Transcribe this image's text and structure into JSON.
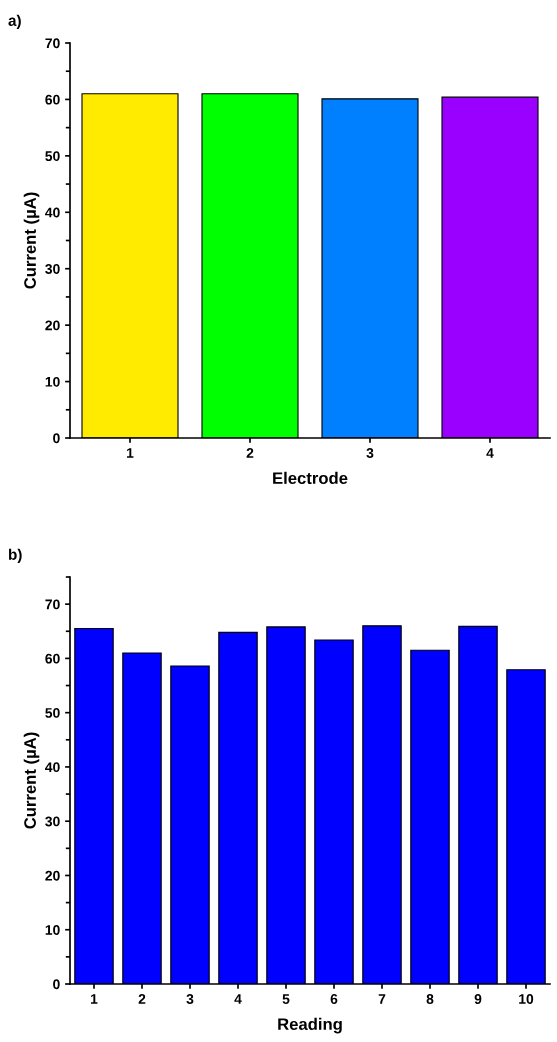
{
  "chart_data": [
    {
      "type": "bar",
      "xlabel": "Electrode",
      "ylabel": "Current (µA)",
      "annotations": [
        "a)"
      ],
      "categories": [
        "1",
        "2",
        "3",
        "4"
      ],
      "series": [
        {
          "values": [
            61.0,
            61.0,
            60.1,
            60.4
          ],
          "colors": [
            "#ffeb00",
            "#00ff00",
            "#0080ff",
            "#9900ff"
          ]
        }
      ],
      "ylim": [
        0,
        70
      ],
      "yticks": [
        0,
        10,
        20,
        30,
        40,
        50,
        60,
        70
      ],
      "grid": false,
      "legend": false
    },
    {
      "type": "bar",
      "xlabel": "Reading",
      "ylabel": "Current (µA)",
      "annotations": [
        "b)"
      ],
      "categories": [
        "1",
        "2",
        "3",
        "4",
        "5",
        "6",
        "7",
        "8",
        "9",
        "10"
      ],
      "series": [
        {
          "color": "#0000ff",
          "values": [
            65.5,
            61.0,
            58.6,
            64.8,
            65.8,
            63.4,
            66.0,
            61.5,
            65.9,
            57.9
          ]
        }
      ],
      "ylim": [
        0,
        75
      ],
      "yticks": [
        0,
        10,
        20,
        30,
        40,
        50,
        60,
        70
      ],
      "grid": false,
      "legend": false
    }
  ]
}
